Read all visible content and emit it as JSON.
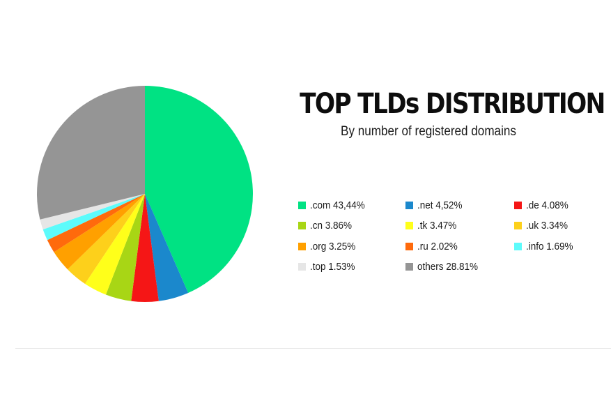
{
  "chart_data": {
    "type": "pie",
    "title": "TOP TLDs DISTRIBUTION",
    "subtitle": "By number of registered domains",
    "legend_position": "right",
    "slices": [
      {
        "label": ".com",
        "value": 43.44,
        "color": "#00e283",
        "legend_text": ".com 43,44%"
      },
      {
        "label": ".net",
        "value": 4.52,
        "color": "#1b88cc",
        "legend_text": ".net 4,52%"
      },
      {
        "label": ".de",
        "value": 4.08,
        "color": "#f51616",
        "legend_text": ".de 4.08%"
      },
      {
        "label": ".cn",
        "value": 3.86,
        "color": "#a8d615",
        "legend_text": ".cn 3.86%"
      },
      {
        "label": ".tk",
        "value": 3.47,
        "color": "#ffff1a",
        "legend_text": ".tk 3.47%"
      },
      {
        "label": ".uk",
        "value": 3.34,
        "color": "#fdd01b",
        "legend_text": ".uk 3.34%"
      },
      {
        "label": ".org",
        "value": 3.25,
        "color": "#ffa000",
        "legend_text": ".org 3.25%"
      },
      {
        "label": ".ru",
        "value": 2.02,
        "color": "#ff6a0c",
        "legend_text": ".ru 2.02%"
      },
      {
        "label": ".info",
        "value": 1.69,
        "color": "#5dfbfb",
        "legend_text": ".info 1.69%"
      },
      {
        "label": ".top",
        "value": 1.53,
        "color": "#e6e6e6",
        "legend_text": ".top 1.53%"
      },
      {
        "label": "others",
        "value": 28.81,
        "color": "#959595",
        "legend_text": "others 28.81%"
      }
    ]
  }
}
